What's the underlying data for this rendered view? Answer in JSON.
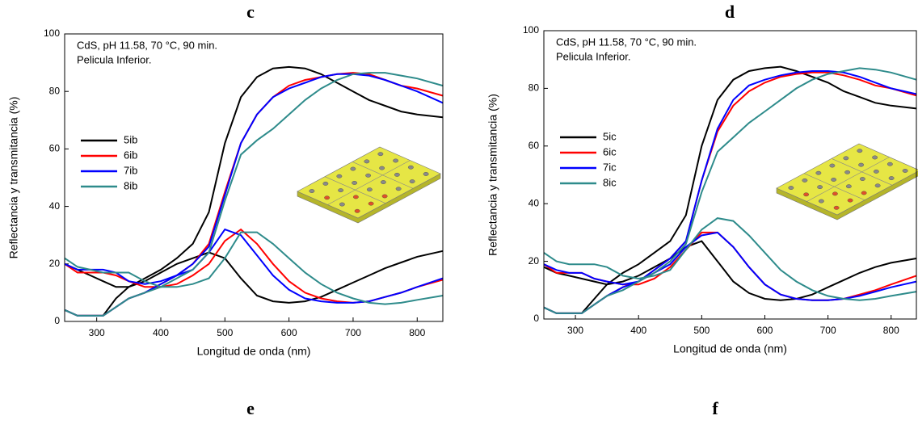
{
  "chart_data": [
    {
      "type": "line",
      "title": "c",
      "annotation": [
        "CdS, pH 11.58, 70 °C, 90 min.",
        "Pelicula Inferior."
      ],
      "x_label": "Longitud de onda (nm)",
      "y_label": "Reflectancia y transmitancia (%)",
      "xlim": [
        250,
        840
      ],
      "ylim": [
        0,
        100
      ],
      "xticks": [
        300,
        400,
        500,
        600,
        700,
        800
      ],
      "yticks": [
        0,
        20,
        40,
        60,
        80,
        100
      ],
      "legend": "left",
      "x": [
        250,
        270,
        290,
        310,
        330,
        350,
        375,
        400,
        425,
        450,
        475,
        500,
        525,
        550,
        575,
        600,
        625,
        650,
        675,
        700,
        725,
        750,
        775,
        800,
        840
      ],
      "series": [
        {
          "name": "5ib",
          "color": "#000000",
          "values": [
            4,
            2,
            2,
            2,
            8,
            12,
            15,
            18,
            22,
            27,
            38,
            62,
            78,
            85,
            88,
            88.5,
            88,
            86,
            83,
            80,
            77,
            75,
            73,
            72,
            71
          ],
          "values_low": [
            20,
            18,
            16,
            14,
            12,
            12,
            14,
            17,
            20,
            22,
            24,
            22,
            15,
            9,
            7,
            6.5,
            7,
            8.5,
            11,
            13.5,
            16,
            18.5,
            20.5,
            22.5,
            24.5
          ]
        },
        {
          "name": "6ib",
          "color": "#ff0000",
          "values": [
            4,
            2,
            2,
            2,
            5,
            8,
            10,
            13,
            16,
            20,
            27,
            45,
            62,
            72,
            78,
            82,
            84,
            85,
            86,
            86.5,
            86,
            84,
            82,
            81,
            78.5
          ],
          "values_low": [
            20,
            17,
            17,
            17,
            16,
            14,
            12,
            12,
            13,
            16,
            20,
            28,
            32,
            27,
            20,
            14,
            10,
            8,
            7,
            6.5,
            7,
            8.5,
            10,
            12,
            14.5
          ]
        },
        {
          "name": "7ib",
          "color": "#0000ff",
          "values": [
            4,
            2,
            2,
            2,
            5,
            8,
            10,
            13,
            16,
            20,
            26,
            44,
            62,
            72,
            78,
            81,
            83,
            85,
            86,
            86,
            85.5,
            84,
            82,
            80,
            76
          ],
          "values_low": [
            20,
            18,
            18,
            18,
            17,
            14,
            13,
            14,
            16,
            18,
            24,
            32,
            30,
            23,
            16,
            11,
            8,
            7,
            6.5,
            6.5,
            7,
            8.5,
            10,
            12,
            15
          ]
        },
        {
          "name": "8ib",
          "color": "#2e8b8b",
          "values": [
            4,
            2,
            2,
            2,
            5,
            8,
            10,
            12,
            15,
            18,
            24,
            42,
            58,
            63,
            67,
            72,
            77,
            81,
            84,
            86,
            86.5,
            86.5,
            85.5,
            84.5,
            82
          ],
          "values_low": [
            22,
            19,
            18,
            17,
            17,
            17,
            14,
            12,
            12,
            13,
            15,
            22,
            31,
            31,
            27,
            22,
            17,
            13,
            10,
            8,
            6.5,
            6,
            6.5,
            7.5,
            9
          ]
        }
      ]
    },
    {
      "type": "line",
      "title": "d",
      "annotation": [
        "CdS, pH 11.58, 70 °C, 90 min.",
        "Pelicula Inferior."
      ],
      "x_label": "Longitud de onda (nm)",
      "y_label": "Reflectancia y transmitancia (%)",
      "xlim": [
        250,
        840
      ],
      "ylim": [
        0,
        100
      ],
      "xticks": [
        300,
        400,
        500,
        600,
        700,
        800
      ],
      "yticks": [
        0,
        20,
        40,
        60,
        80,
        100
      ],
      "legend": "left",
      "x": [
        250,
        270,
        290,
        310,
        330,
        350,
        375,
        400,
        425,
        450,
        475,
        500,
        525,
        550,
        575,
        600,
        625,
        650,
        675,
        700,
        725,
        750,
        775,
        800,
        840
      ],
      "series": [
        {
          "name": "5ic",
          "color": "#000000",
          "values": [
            4,
            2,
            2,
            2,
            7,
            12,
            16,
            19,
            23,
            27,
            36,
            60,
            76,
            83,
            86,
            87,
            87.5,
            86,
            84,
            82,
            79,
            77,
            75,
            74,
            73
          ],
          "values_low": [
            18,
            16,
            15,
            14,
            13,
            12,
            13,
            15,
            18,
            21,
            25,
            27,
            20,
            13,
            9,
            7,
            6.5,
            7,
            8.5,
            11,
            13.5,
            16,
            18,
            19.5,
            21
          ]
        },
        {
          "name": "6ic",
          "color": "#ff0000",
          "values": [
            4,
            2,
            2,
            2,
            5,
            8,
            11,
            13,
            17,
            21,
            27,
            48,
            65,
            74,
            79,
            82,
            84,
            85,
            85.5,
            85.5,
            84.5,
            83,
            81,
            80,
            77.5
          ],
          "values_low": [
            19,
            16,
            16,
            16,
            14,
            13,
            12,
            12,
            14,
            18,
            24,
            30,
            30,
            25,
            18,
            12,
            8.5,
            7,
            6.5,
            6.5,
            7,
            8.5,
            10,
            12,
            15
          ]
        },
        {
          "name": "7ic",
          "color": "#0000ff",
          "values": [
            4,
            2,
            2,
            2,
            5,
            8,
            11,
            13,
            17,
            21,
            27,
            48,
            66,
            76,
            81,
            83,
            84.5,
            85.5,
            86,
            86,
            85.5,
            84,
            82,
            80,
            78
          ],
          "values_low": [
            19,
            17,
            16,
            16,
            14,
            13,
            12,
            13,
            16,
            19,
            25,
            29,
            30,
            25,
            18,
            12,
            8.5,
            7,
            6.5,
            6.5,
            7,
            8,
            9.5,
            11,
            13
          ]
        },
        {
          "name": "8ic",
          "color": "#2e8b8b",
          "values": [
            4,
            2,
            2,
            2,
            5,
            8,
            10,
            13,
            16,
            20,
            26,
            44,
            58,
            63,
            68,
            72,
            76,
            80,
            83,
            85,
            86,
            87,
            86.5,
            85.5,
            83
          ],
          "values_low": [
            23,
            20,
            19,
            19,
            19,
            18,
            15,
            14,
            15,
            17,
            24,
            31,
            35,
            34,
            29,
            23,
            17,
            13,
            10,
            8,
            7,
            6.5,
            7,
            8,
            9.5
          ]
        }
      ]
    }
  ],
  "lower_panel_labels": [
    "e",
    "f"
  ]
}
